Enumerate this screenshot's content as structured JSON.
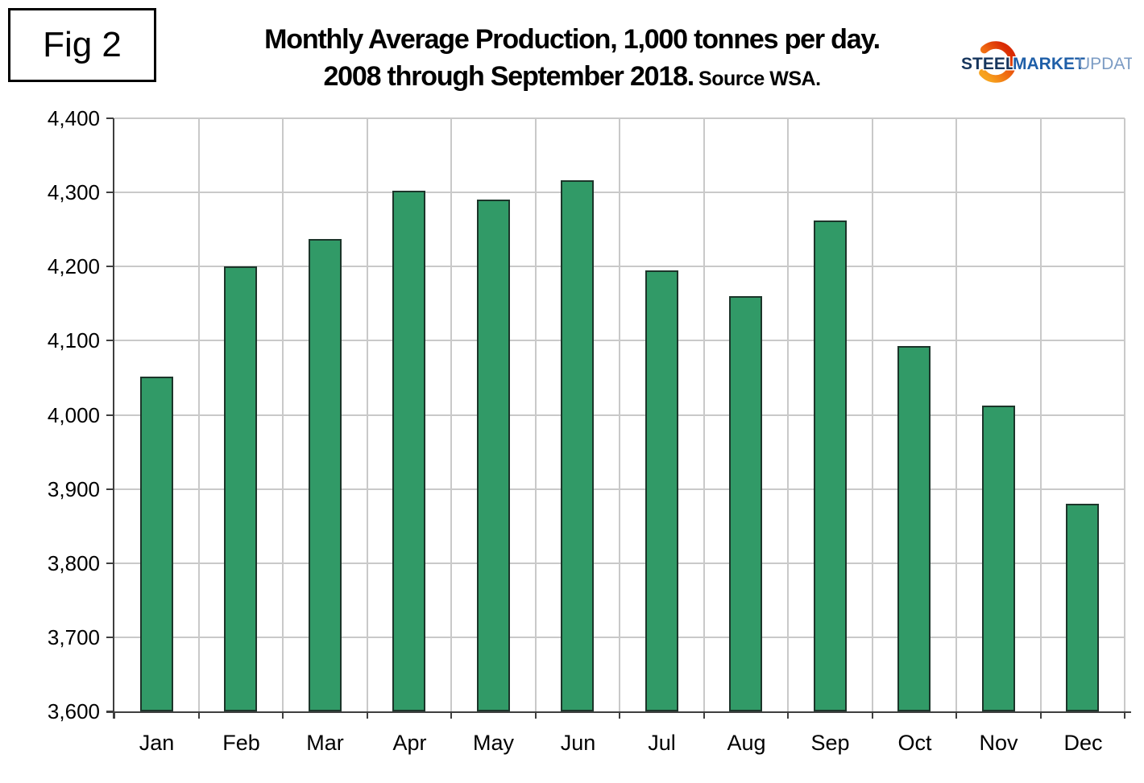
{
  "figure": {
    "label": "Fig 2"
  },
  "logo": {
    "word1": "STEEL",
    "word2": "MARKET",
    "word3": "UPDATE",
    "crescent_icon": "orange-crescent-swoosh",
    "colors": {
      "word1": "#17365d",
      "word2": "#1f5fa8",
      "word3": "#7c9cc4",
      "crescent_top": "#f7a21d",
      "crescent_bottom": "#d92b05"
    }
  },
  "chart_data": {
    "type": "bar",
    "title": "Monthly Average Production, 1,000 tonnes per day.",
    "subtitle": "2008 through September 2018.",
    "source_note": "Source WSA.",
    "categories": [
      "Jan",
      "Feb",
      "Mar",
      "Apr",
      "May",
      "Jun",
      "Jul",
      "Aug",
      "Sep",
      "Oct",
      "Nov",
      "Dec"
    ],
    "values": [
      4052,
      4200,
      4237,
      4302,
      4290,
      4316,
      4195,
      4160,
      4262,
      4093,
      4013,
      3880
    ],
    "ylim": [
      3600,
      4400
    ],
    "ytick_step": 100,
    "ytick_labels": [
      "3,600",
      "3,700",
      "3,800",
      "3,900",
      "4,000",
      "4,100",
      "4,200",
      "4,300",
      "4,400"
    ],
    "xlabel": "",
    "ylabel": "",
    "grid": true,
    "legend": "none",
    "bar_color": "#319a67",
    "bar_border_color": "#1c352a",
    "gridline_color": "#c9c9c9",
    "axis_color": "#3f3f3f"
  }
}
